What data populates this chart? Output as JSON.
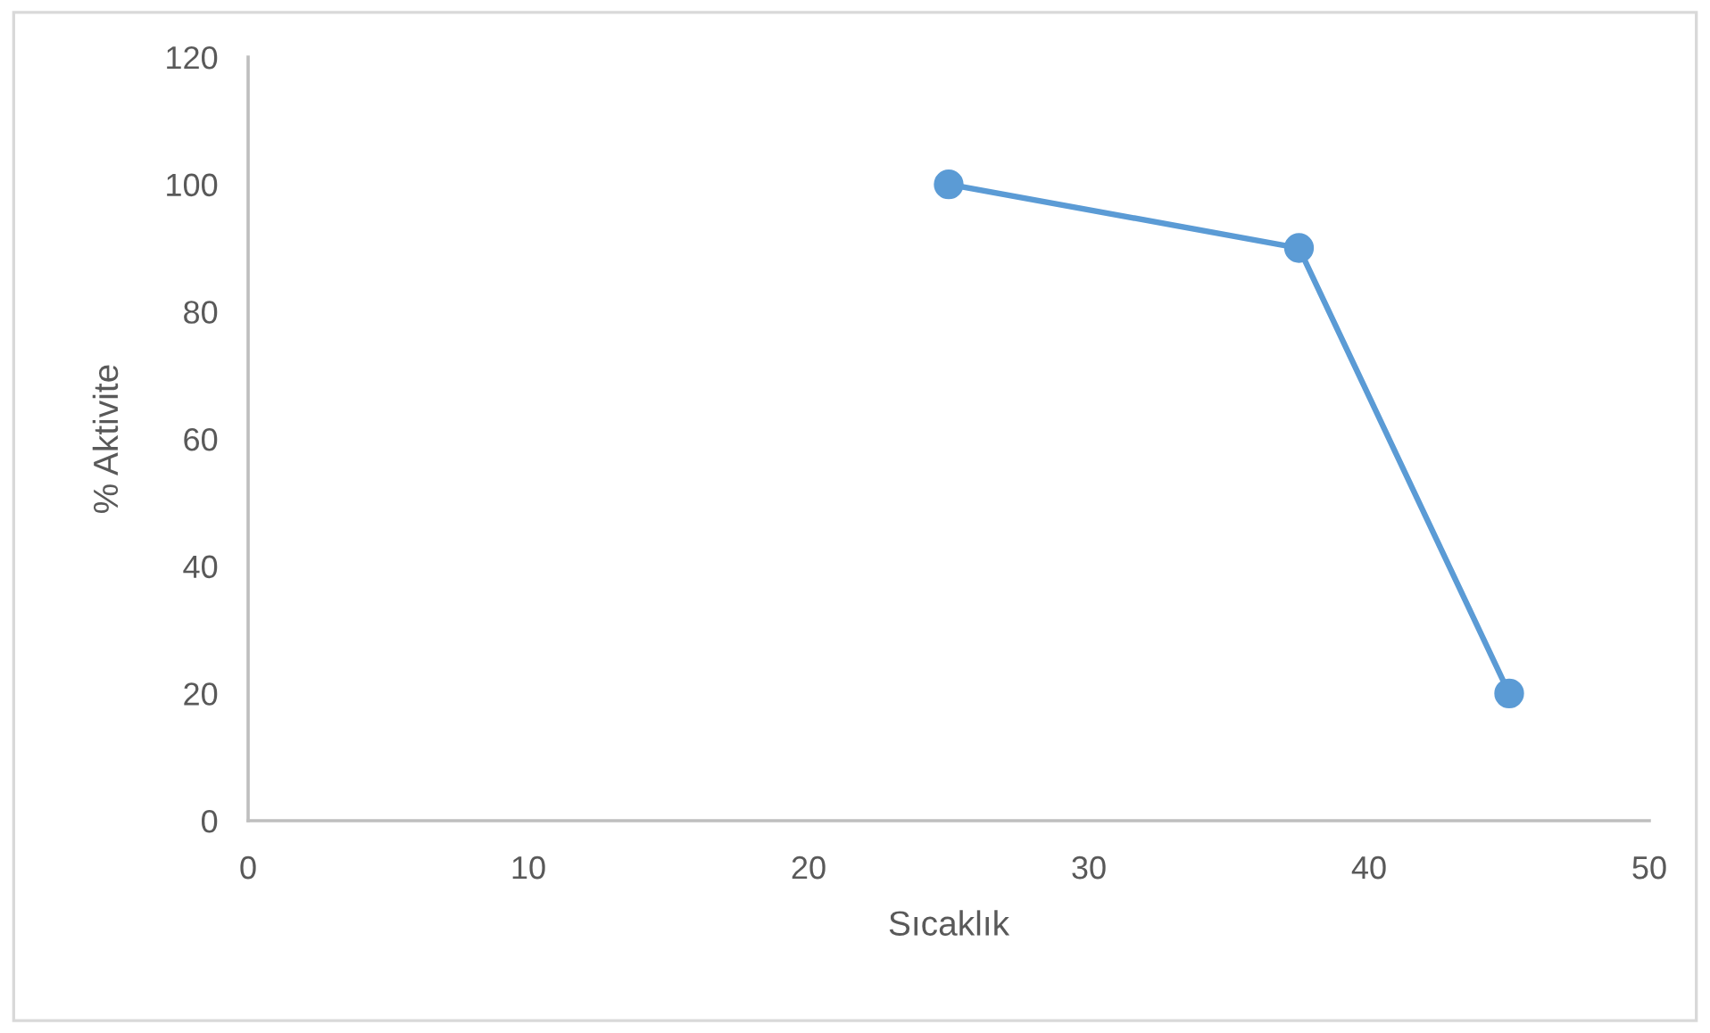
{
  "chart_data": {
    "type": "line",
    "xlabel": "Sıcaklık",
    "ylabel": "% Aktivite",
    "x": [
      25,
      37.5,
      45
    ],
    "series": [
      {
        "color": "#5b9bd5",
        "values": [
          100,
          90,
          20
        ]
      }
    ],
    "xlim": [
      0,
      50
    ],
    "xticks": [
      0,
      10,
      20,
      30,
      40,
      50
    ],
    "ylim": [
      0,
      120
    ],
    "yticks": [
      0,
      20,
      40,
      60,
      80,
      100,
      120
    ],
    "marker": "circle",
    "line_style": "solid"
  }
}
